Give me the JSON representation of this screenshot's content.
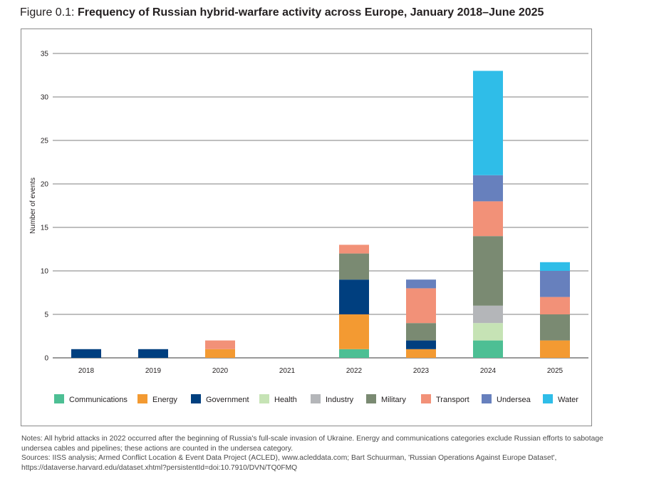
{
  "figure": {
    "label": "Figure 0.1: ",
    "title": "Frequency of Russian hybrid-warfare activity across Europe, January 2018–June 2025"
  },
  "chart_data": {
    "type": "bar",
    "stacked": true,
    "categories": [
      "2018",
      "2019",
      "2020",
      "2021",
      "2022",
      "2023",
      "2024",
      "2025"
    ],
    "ylabel": "Number of events",
    "xlabel": "",
    "ylim": [
      0,
      35
    ],
    "yticks": [
      0,
      5,
      10,
      15,
      20,
      25,
      30,
      35
    ],
    "grid": "horizontal",
    "legend_position": "bottom",
    "series": [
      {
        "name": "Communications",
        "color": "#4dbf94",
        "values": [
          0,
          0,
          0,
          0,
          1,
          0,
          2,
          0
        ]
      },
      {
        "name": "Energy",
        "color": "#f39a32",
        "values": [
          0,
          0,
          1,
          0,
          4,
          1,
          0,
          2
        ]
      },
      {
        "name": "Government",
        "color": "#003f7f",
        "values": [
          1,
          1,
          0,
          0,
          4,
          1,
          0,
          0
        ]
      },
      {
        "name": "Health",
        "color": "#c6e3b5",
        "values": [
          0,
          0,
          0,
          0,
          0,
          0,
          2,
          0
        ]
      },
      {
        "name": "Industry",
        "color": "#b4b6b9",
        "values": [
          0,
          0,
          0,
          0,
          0,
          0,
          2,
          0
        ]
      },
      {
        "name": "Military",
        "color": "#7a8a72",
        "values": [
          0,
          0,
          0,
          0,
          3,
          2,
          8,
          3
        ]
      },
      {
        "name": "Transport",
        "color": "#f29178",
        "values": [
          0,
          0,
          1,
          0,
          1,
          4,
          4,
          2
        ]
      },
      {
        "name": "Undersea",
        "color": "#6780bd",
        "values": [
          0,
          0,
          0,
          0,
          0,
          1,
          3,
          3
        ]
      },
      {
        "name": "Water",
        "color": "#2fbde8",
        "values": [
          0,
          0,
          0,
          0,
          0,
          0,
          12,
          1
        ]
      }
    ]
  },
  "notes": {
    "line1": "Notes: All hybrid attacks in 2022 occurred after the beginning of Russia's full-scale invasion of Ukraine. Energy and communications categories exclude Russian efforts to sabotage undersea cables and pipelines; these actions are counted in the undersea category.",
    "line2": "Sources: IISS analysis; Armed Conflict Location & Event Data Project (ACLED), www.acleddata.com; Bart Schuurman, 'Russian Operations Against Europe Dataset', https://dataverse.harvard.edu/dataset.xhtml?persistentId=doi:10.7910/DVN/TQ0FMQ"
  }
}
